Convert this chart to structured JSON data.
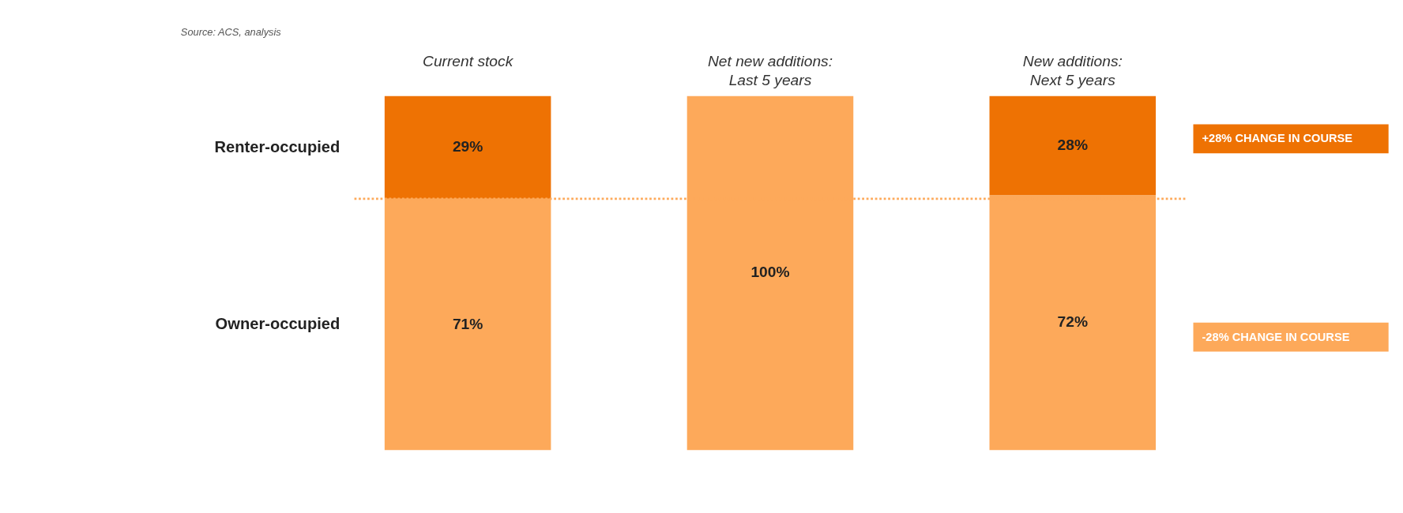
{
  "chart_data": {
    "type": "bar",
    "stacked": true,
    "categories": [
      "Current stock",
      "Net new additions:\nLast 5 years",
      "New additions:\nNext 5 years"
    ],
    "series": [
      {
        "name": "Owner-occupied",
        "color": "#fda95a",
        "values": [
          71,
          100,
          72
        ],
        "value_labels": [
          "71%",
          "100%",
          "72%"
        ]
      },
      {
        "name": "Renter-occupied",
        "color": "#ee7203",
        "values": [
          29,
          null,
          28
        ],
        "value_labels": [
          "29%",
          null,
          "28%"
        ]
      }
    ],
    "ylim": [
      0,
      100
    ],
    "tick_labels": "x",
    "grid": false,
    "legend": false,
    "ref_lines": [
      {
        "axis": "y",
        "value": 71,
        "color": "#fda95a",
        "line_style": "dotted"
      }
    ],
    "annotations": [
      "Source: ACS, analysis",
      "+28% CHANGE IN COURSE",
      "-28% CHANGE IN COURSE"
    ]
  }
}
